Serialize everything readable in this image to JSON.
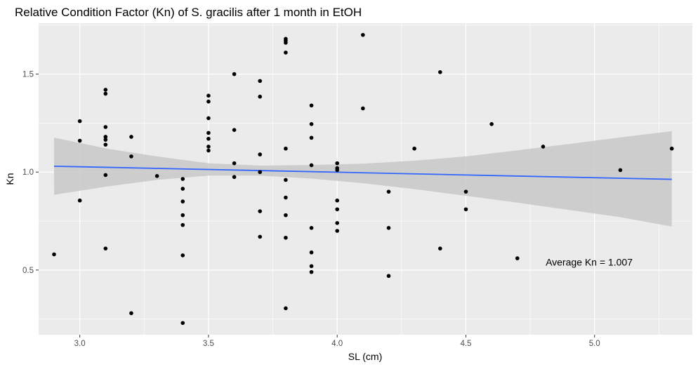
{
  "chart_data": {
    "type": "scatter",
    "title": "Relative Condition Factor (Kn) of S. gracilis after 1 month in EtOH",
    "xlabel": "SL (cm)",
    "ylabel": "Kn",
    "xlim": [
      2.84,
      5.38
    ],
    "ylim": [
      0.17,
      1.76
    ],
    "x_ticks": [
      3.0,
      3.5,
      4.0,
      4.5,
      5.0
    ],
    "x_tick_labels": [
      "3.0",
      "3.5",
      "4.0",
      "4.5",
      "5.0"
    ],
    "y_ticks": [
      0.5,
      1.0,
      1.5
    ],
    "y_tick_labels": [
      "0.5",
      "1.0",
      "1.5"
    ],
    "grid": true,
    "annotation": {
      "text": "Average Kn = 1.007",
      "x": 4.81,
      "y": 0.54
    },
    "colors": {
      "panel": "#ebebeb",
      "grid": "#ffffff",
      "points": "#000000",
      "fit_line": "#3366ff",
      "ribbon": "#c8c8c8"
    },
    "points": [
      {
        "x": 2.9,
        "y": 0.58
      },
      {
        "x": 3.0,
        "y": 1.26
      },
      {
        "x": 3.0,
        "y": 1.16
      },
      {
        "x": 3.0,
        "y": 0.855
      },
      {
        "x": 3.1,
        "y": 1.42
      },
      {
        "x": 3.1,
        "y": 1.4
      },
      {
        "x": 3.1,
        "y": 1.23
      },
      {
        "x": 3.1,
        "y": 1.18
      },
      {
        "x": 3.1,
        "y": 1.165
      },
      {
        "x": 3.1,
        "y": 1.14
      },
      {
        "x": 3.1,
        "y": 0.985
      },
      {
        "x": 3.1,
        "y": 0.61
      },
      {
        "x": 3.2,
        "y": 1.18
      },
      {
        "x": 3.2,
        "y": 1.08
      },
      {
        "x": 3.2,
        "y": 0.28
      },
      {
        "x": 3.3,
        "y": 0.98
      },
      {
        "x": 3.4,
        "y": 0.965
      },
      {
        "x": 3.4,
        "y": 0.915
      },
      {
        "x": 3.4,
        "y": 0.85
      },
      {
        "x": 3.4,
        "y": 0.78
      },
      {
        "x": 3.4,
        "y": 0.73
      },
      {
        "x": 3.4,
        "y": 0.575
      },
      {
        "x": 3.4,
        "y": 0.23
      },
      {
        "x": 3.5,
        "y": 1.39
      },
      {
        "x": 3.5,
        "y": 1.36
      },
      {
        "x": 3.5,
        "y": 1.275
      },
      {
        "x": 3.5,
        "y": 1.2
      },
      {
        "x": 3.5,
        "y": 1.17
      },
      {
        "x": 3.5,
        "y": 1.13
      },
      {
        "x": 3.5,
        "y": 1.11
      },
      {
        "x": 3.6,
        "y": 1.5
      },
      {
        "x": 3.6,
        "y": 1.215
      },
      {
        "x": 3.6,
        "y": 1.045
      },
      {
        "x": 3.6,
        "y": 0.975
      },
      {
        "x": 3.7,
        "y": 1.465
      },
      {
        "x": 3.7,
        "y": 1.385
      },
      {
        "x": 3.7,
        "y": 1.09
      },
      {
        "x": 3.7,
        "y": 1.0
      },
      {
        "x": 3.7,
        "y": 0.8
      },
      {
        "x": 3.7,
        "y": 0.67
      },
      {
        "x": 3.8,
        "y": 1.68
      },
      {
        "x": 3.8,
        "y": 1.67
      },
      {
        "x": 3.8,
        "y": 1.66
      },
      {
        "x": 3.8,
        "y": 1.61
      },
      {
        "x": 3.8,
        "y": 1.12
      },
      {
        "x": 3.8,
        "y": 0.96
      },
      {
        "x": 3.8,
        "y": 0.87
      },
      {
        "x": 3.8,
        "y": 0.78
      },
      {
        "x": 3.8,
        "y": 0.665
      },
      {
        "x": 3.8,
        "y": 0.305
      },
      {
        "x": 3.9,
        "y": 1.34
      },
      {
        "x": 3.9,
        "y": 1.245
      },
      {
        "x": 3.9,
        "y": 1.175
      },
      {
        "x": 3.9,
        "y": 1.035
      },
      {
        "x": 3.9,
        "y": 0.715
      },
      {
        "x": 3.9,
        "y": 0.59
      },
      {
        "x": 3.9,
        "y": 0.52
      },
      {
        "x": 3.9,
        "y": 0.49
      },
      {
        "x": 4.0,
        "y": 1.045
      },
      {
        "x": 4.0,
        "y": 1.02
      },
      {
        "x": 4.0,
        "y": 1.01
      },
      {
        "x": 4.0,
        "y": 0.855
      },
      {
        "x": 4.0,
        "y": 0.81
      },
      {
        "x": 4.0,
        "y": 0.74
      },
      {
        "x": 4.0,
        "y": 0.7
      },
      {
        "x": 4.1,
        "y": 1.7
      },
      {
        "x": 4.1,
        "y": 1.325
      },
      {
        "x": 4.2,
        "y": 0.9
      },
      {
        "x": 4.2,
        "y": 0.715
      },
      {
        "x": 4.2,
        "y": 0.47
      },
      {
        "x": 4.3,
        "y": 1.12
      },
      {
        "x": 4.4,
        "y": 1.51
      },
      {
        "x": 4.4,
        "y": 0.61
      },
      {
        "x": 4.5,
        "y": 0.9
      },
      {
        "x": 4.5,
        "y": 0.81
      },
      {
        "x": 4.6,
        "y": 1.245
      },
      {
        "x": 4.7,
        "y": 0.56
      },
      {
        "x": 4.8,
        "y": 1.13
      },
      {
        "x": 5.1,
        "y": 1.01
      },
      {
        "x": 5.3,
        "y": 1.12
      }
    ],
    "fit": {
      "x": [
        2.9,
        5.3
      ],
      "y": [
        1.03,
        0.963
      ]
    },
    "ribbon": {
      "x": [
        2.9,
        3.1,
        3.3,
        3.5,
        3.7,
        3.9,
        4.1,
        4.3,
        4.5,
        4.7,
        4.9,
        5.1,
        5.3
      ],
      "lower": [
        0.884,
        0.925,
        0.96,
        0.982,
        0.982,
        0.967,
        0.943,
        0.913,
        0.879,
        0.844,
        0.807,
        0.77,
        0.722
      ],
      "upper": [
        1.176,
        1.121,
        1.08,
        1.045,
        1.033,
        1.036,
        1.043,
        1.058,
        1.08,
        1.111,
        1.143,
        1.177,
        1.209
      ]
    }
  }
}
